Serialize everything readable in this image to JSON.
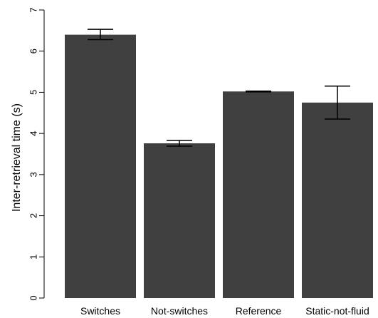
{
  "chart_data": {
    "type": "bar",
    "title": "",
    "xlabel": "",
    "ylabel": "Inter-retrieval time (s)",
    "categories": [
      "Switches",
      "Not-switches",
      "Reference",
      "Static-not-fluid"
    ],
    "values": [
      6.4,
      3.76,
      5.02,
      4.75
    ],
    "error_low": [
      6.28,
      3.69,
      5.01,
      4.35
    ],
    "error_high": [
      6.53,
      3.83,
      5.03,
      5.15
    ],
    "ylim": [
      0,
      7
    ],
    "yticks": [
      "0",
      "1",
      "2",
      "3",
      "4",
      "5",
      "6",
      "7"
    ],
    "bar_color": "#404040",
    "grid": false,
    "legend": "none"
  }
}
